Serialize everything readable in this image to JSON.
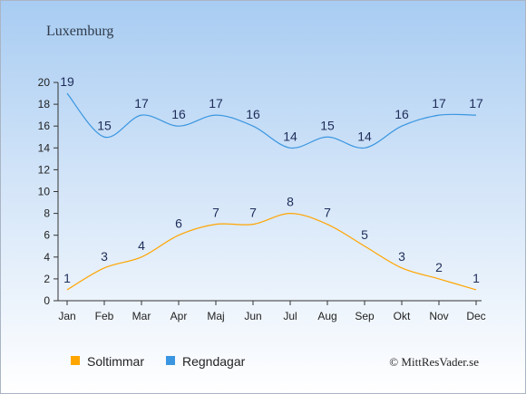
{
  "chart_data": {
    "type": "line",
    "title": "Luxemburg",
    "categories": [
      "Jan",
      "Feb",
      "Mar",
      "Apr",
      "Maj",
      "Jun",
      "Jul",
      "Aug",
      "Sep",
      "Okt",
      "Nov",
      "Dec"
    ],
    "ylim": [
      0,
      20
    ],
    "yticks": [
      0,
      2,
      4,
      6,
      8,
      10,
      12,
      14,
      16,
      18,
      20
    ],
    "grid": false,
    "legend_position": "bottom-left",
    "series": [
      {
        "name": "Soltimmar",
        "color": "#ffa500",
        "values": [
          1,
          3,
          4,
          6,
          7,
          7,
          8,
          7,
          5,
          3,
          2,
          1
        ]
      },
      {
        "name": "Regndagar",
        "color": "#3a96e0",
        "values": [
          19,
          15,
          17,
          16,
          17,
          16,
          14,
          15,
          14,
          16,
          17,
          17
        ]
      }
    ]
  },
  "credit": "© MittResVader.se"
}
